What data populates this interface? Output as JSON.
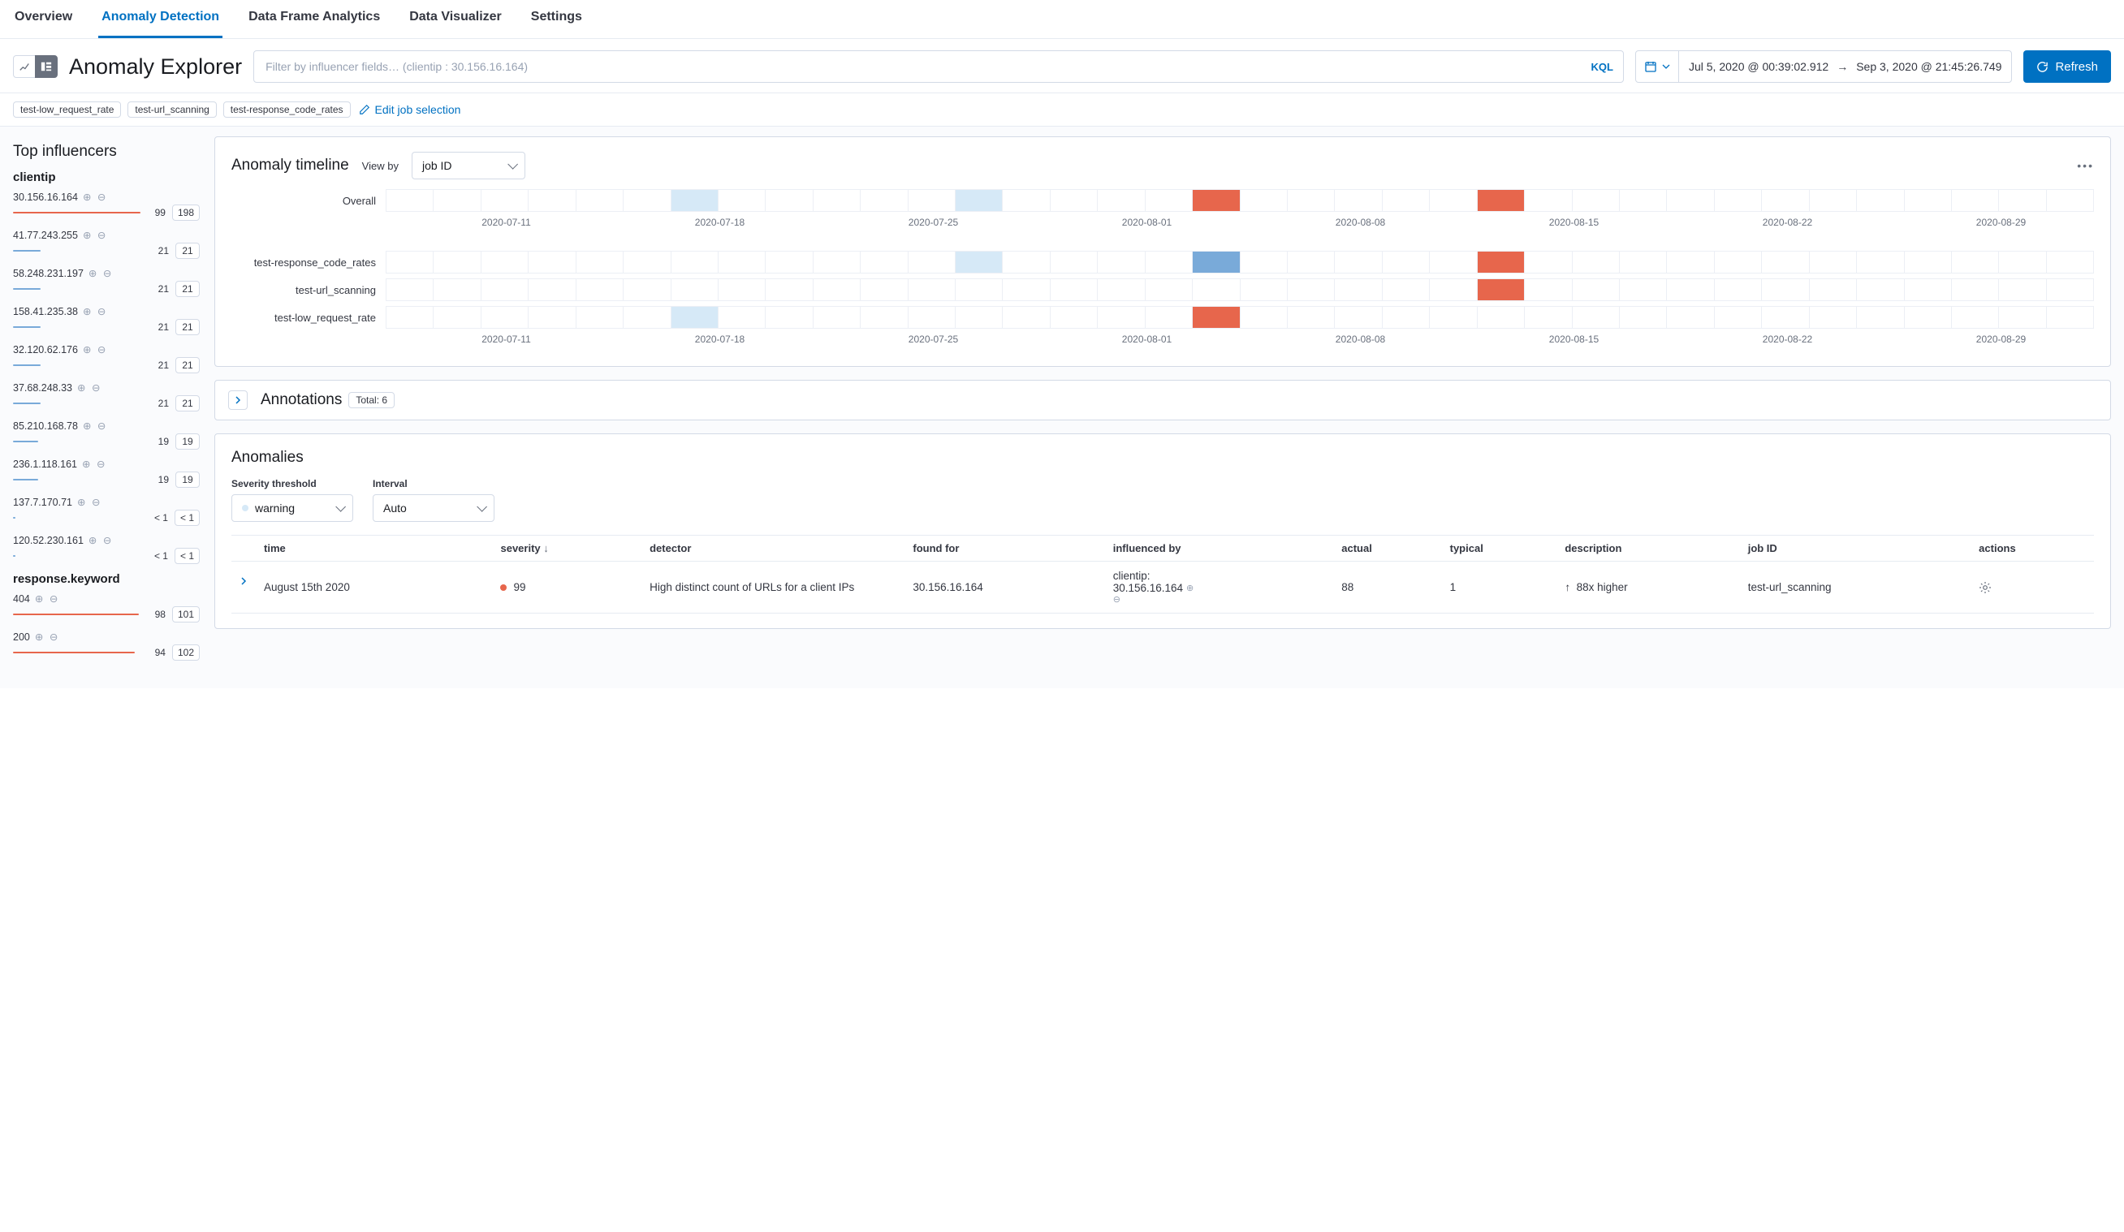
{
  "tabs": [
    {
      "label": "Overview",
      "active": false
    },
    {
      "label": "Anomaly Detection",
      "active": true
    },
    {
      "label": "Data Frame Analytics",
      "active": false
    },
    {
      "label": "Data Visualizer",
      "active": false
    },
    {
      "label": "Settings",
      "active": false
    }
  ],
  "page_title": "Anomaly Explorer",
  "filter_placeholder": "Filter by influencer fields… (clientip : 30.156.16.164)",
  "kql_label": "KQL",
  "date_from": "Jul 5, 2020 @ 00:39:02.912",
  "date_to": "Sep 3, 2020 @ 21:45:26.749",
  "refresh_label": "Refresh",
  "job_chips": [
    "test-low_request_rate",
    "test-url_scanning",
    "test-response_code_rates"
  ],
  "edit_jobs_label": "Edit job selection",
  "sidebar": {
    "title": "Top influencers",
    "groups": [
      {
        "name": "clientip",
        "items": [
          {
            "label": "30.156.16.164",
            "score": "99",
            "total": "198",
            "pct": 94,
            "color": "#e7664c"
          },
          {
            "label": "41.77.243.255",
            "score": "21",
            "total": "21",
            "pct": 20,
            "color": "#79aad9"
          },
          {
            "label": "58.248.231.197",
            "score": "21",
            "total": "21",
            "pct": 20,
            "color": "#79aad9"
          },
          {
            "label": "158.41.235.38",
            "score": "21",
            "total": "21",
            "pct": 20,
            "color": "#79aad9"
          },
          {
            "label": "32.120.62.176",
            "score": "21",
            "total": "21",
            "pct": 20,
            "color": "#79aad9"
          },
          {
            "label": "37.68.248.33",
            "score": "21",
            "total": "21",
            "pct": 20,
            "color": "#79aad9"
          },
          {
            "label": "85.210.168.78",
            "score": "19",
            "total": "19",
            "pct": 18,
            "color": "#79aad9"
          },
          {
            "label": "236.1.118.161",
            "score": "19",
            "total": "19",
            "pct": 18,
            "color": "#79aad9"
          },
          {
            "label": "137.7.170.71",
            "score": "< 1",
            "total": "< 1",
            "pct": 2,
            "color": "#79aad9"
          },
          {
            "label": "120.52.230.161",
            "score": "< 1",
            "total": "< 1",
            "pct": 2,
            "color": "#79aad9"
          }
        ]
      },
      {
        "name": "response.keyword",
        "items": [
          {
            "label": "404",
            "score": "98",
            "total": "101",
            "pct": 93,
            "color": "#e7664c"
          },
          {
            "label": "200",
            "score": "94",
            "total": "102",
            "pct": 90,
            "color": "#e7664c"
          }
        ]
      }
    ]
  },
  "timeline": {
    "title": "Anomaly timeline",
    "viewby_label": "View by",
    "viewby_value": "job ID",
    "cols": 36,
    "axis": [
      "2020-07-11",
      "2020-07-18",
      "2020-07-25",
      "2020-08-01",
      "2020-08-08",
      "2020-08-15",
      "2020-08-22",
      "2020-08-29"
    ],
    "lane_overall": {
      "label": "Overall",
      "cells": {
        "6": "lb",
        "12": "lb",
        "17": "rd",
        "23": "rd"
      }
    },
    "lanes": [
      {
        "label": "test-response_code_rates",
        "cells": {
          "12": "lb",
          "17": "mb",
          "23": "rd"
        }
      },
      {
        "label": "test-url_scanning",
        "cells": {
          "23": "rd"
        }
      },
      {
        "label": "test-low_request_rate",
        "cells": {
          "6": "lb",
          "17": "rd"
        }
      }
    ],
    "cell_colors": {
      "lb": "#d6e9f7",
      "mb": "#79aad9",
      "rd": "#e7664c",
      "default": "#ffffff"
    }
  },
  "annotations": {
    "title": "Annotations",
    "badge": "Total: 6"
  },
  "anomalies": {
    "title": "Anomalies",
    "severity_label": "Severity threshold",
    "severity_value": "warning",
    "interval_label": "Interval",
    "interval_value": "Auto",
    "columns": [
      "time",
      "severity",
      "detector",
      "found for",
      "influenced by",
      "actual",
      "typical",
      "description",
      "job ID",
      "actions"
    ],
    "rows": [
      {
        "time": "August 15th 2020",
        "severity": "99",
        "detector": "High distinct count of URLs for a client IPs",
        "found_for": "30.156.16.164",
        "influenced_by_label": "clientip:",
        "influenced_by_value": "30.156.16.164",
        "actual": "88",
        "typical": "1",
        "description_arrow": "↑",
        "description": "88x higher",
        "job_id": "test-url_scanning"
      }
    ]
  }
}
